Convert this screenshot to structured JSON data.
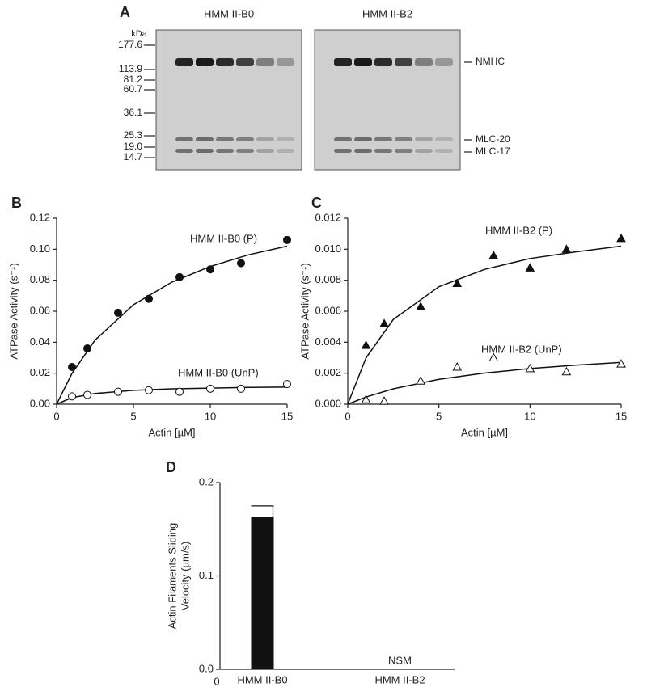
{
  "chart_data": [
    {
      "type": "gel",
      "label": "A",
      "lanes": [
        "HMM II-B0",
        "HMM II-B2"
      ],
      "ylabel": "kDa",
      "yticks": [
        177.6,
        113.9,
        81.2,
        60.7,
        36.1,
        25.3,
        {
          "value": 19.0,
          "label": "19.0"
        },
        14.7
      ],
      "band_labels": [
        "NMHC",
        "MLC-20",
        "MLC-17"
      ]
    },
    {
      "type": "scatter",
      "label": "B",
      "xlabel": "Actin [µM]",
      "ylabel": "ATPase Activity (s⁻¹)",
      "xlim": [
        0,
        15
      ],
      "xticks": [
        0,
        5,
        10,
        15
      ],
      "ylim": [
        0,
        0.12
      ],
      "yticks": [
        {
          "value": 0,
          "label": "0.00"
        },
        0.02,
        0.04,
        0.06,
        0.08,
        {
          "value": 0.1,
          "label": "0.10"
        },
        0.12
      ],
      "x": [
        1,
        2,
        4,
        6,
        8,
        10,
        12,
        15
      ],
      "fit_x": [
        0,
        1,
        2.5,
        5,
        7.5,
        10,
        12.5,
        15
      ],
      "series": [
        {
          "name": "HMM II-B0 (P)",
          "color": "#111111",
          "marker": "circle",
          "filled": true,
          "values": [
            0.024,
            0.036,
            0.059,
            0.068,
            0.082,
            0.087,
            0.091,
            0.106
          ],
          "fit": [
            0,
            0.0199,
            0.0413,
            0.0642,
            0.0788,
            0.0889,
            0.0964,
            0.102
          ]
        },
        {
          "name": "HMM II-B0 (UnP)",
          "color": "#111111",
          "marker": "circle",
          "filled": false,
          "values": [
            0.005,
            0.006,
            0.008,
            0.009,
            0.008,
            0.01,
            0.01,
            0.013
          ],
          "fit": [
            0,
            0.0042,
            0.0069,
            0.0089,
            0.0099,
            0.0104,
            0.0108,
            0.011
          ]
        }
      ]
    },
    {
      "type": "scatter",
      "label": "C",
      "xlabel": "Actin [µM]",
      "ylabel": "ATPase Activity (s⁻¹)",
      "xlim": [
        0,
        15
      ],
      "xticks": [
        0,
        5,
        10,
        15
      ],
      "ylim": [
        0,
        0.012
      ],
      "yticks": [
        {
          "value": 0,
          "label": "0.000"
        },
        0.002,
        0.004,
        0.006,
        0.008,
        {
          "value": 0.01,
          "label": "0.010"
        },
        0.012
      ],
      "x": [
        1,
        2,
        4,
        6,
        8,
        10,
        12,
        15
      ],
      "fit_x": [
        0,
        1,
        2.5,
        5,
        7.5,
        10,
        12.5,
        15
      ],
      "series": [
        {
          "name": "HMM II-B2 (P)",
          "color": "#111111",
          "marker": "triangle",
          "filled": true,
          "values": [
            0.0038,
            0.0052,
            0.0063,
            0.0078,
            0.0096,
            0.0088,
            0.01,
            0.0107
          ],
          "fit": [
            0,
            0.00298,
            0.00547,
            0.00758,
            0.0087,
            0.0094,
            0.00983,
            0.0102
          ]
        },
        {
          "name": "HMM II-B2 (UnP)",
          "color": "#111111",
          "marker": "triangle",
          "filled": false,
          "values": [
            0.0003,
            0.0002,
            0.0015,
            0.0024,
            0.003,
            0.0023,
            0.0021,
            0.0026
          ],
          "fit": [
            0,
            0.00046,
            0.00099,
            0.0016,
            0.00201,
            0.0023,
            0.00252,
            0.0027
          ]
        }
      ]
    },
    {
      "type": "bar",
      "label": "D",
      "ylabel": [
        "Actin Filaments Sliding",
        "Velocity (µm/s)"
      ],
      "categories": [
        "HMM II-B0",
        "HMM II-B2"
      ],
      "values": [
        0.163,
        null
      ],
      "errors": [
        0.012,
        null
      ],
      "annotation": "NSM",
      "color": "#111111",
      "xticks": [
        0
      ],
      "ylim": [
        0,
        0.2
      ],
      "yticks": [
        {
          "value": 0,
          "label": "0.0"
        },
        0.1,
        0.2
      ]
    }
  ]
}
